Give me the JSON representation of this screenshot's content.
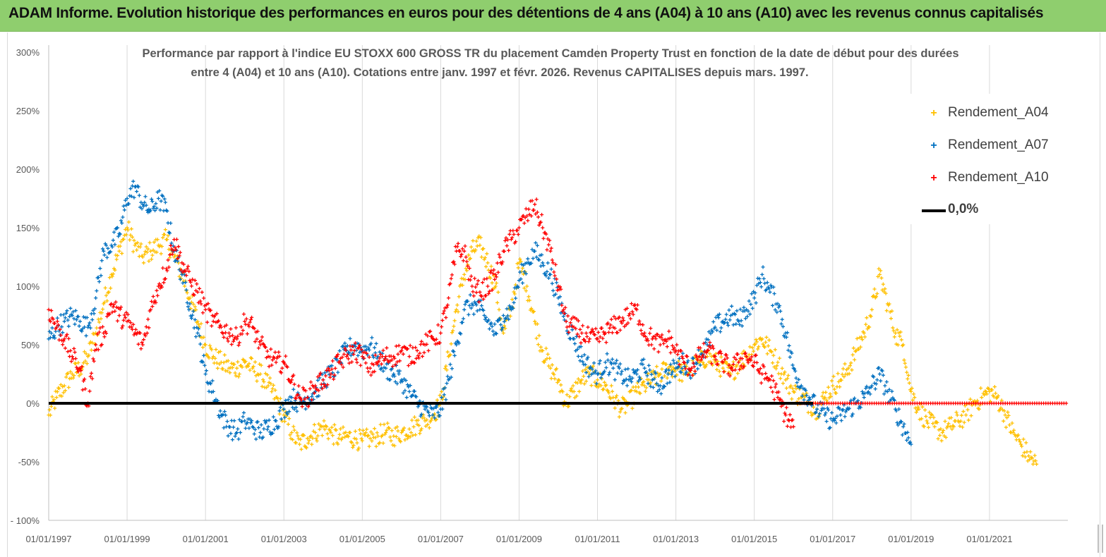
{
  "banner": {
    "title": "ADAM Informe. Evolution historique des performances en euros pour des détentions de 4 ans (A04) à 10 ans (A10) avec les revenus connus capitalisés"
  },
  "colors": {
    "banner_bg": "#8fce6e",
    "A04": "#ffc000",
    "A07": "#0070c0",
    "A10": "#ff0000",
    "zero": "#000000",
    "grid": "#d9d9d9"
  },
  "chart_data": {
    "type": "scatter",
    "title_line1": "Performance par rapport à l'indice EU STOXX 600 GROSS TR  du placement Camden Property Trust en fonction de la date de début pour des durées",
    "title_line2": "entre 4 (A04) et 10 ans (A10).  Cotations entre janv. 1997 et févr. 2026. Revenus CAPITALISES depuis mars. 1997.",
    "xlabel": "",
    "ylabel": "",
    "xlim": [
      1997.0,
      2023.0
    ],
    "ylim": [
      -100,
      300
    ],
    "yticks": [
      -100,
      -50,
      0,
      50,
      100,
      150,
      200,
      250,
      300
    ],
    "ytick_labels": [
      "- 100%",
      "-50%",
      "0%",
      "50%",
      "100%",
      "150%",
      "200%",
      "250%",
      "300%"
    ],
    "xticks": [
      1997,
      1999,
      2001,
      2003,
      2005,
      2007,
      2009,
      2011,
      2013,
      2015,
      2017,
      2019,
      2021
    ],
    "xtick_labels": [
      "01/01/1997",
      "01/01/1999",
      "01/01/2001",
      "01/01/2003",
      "01/01/2005",
      "01/01/2007",
      "01/01/2009",
      "01/01/2011",
      "01/01/2013",
      "01/01/2015",
      "01/01/2017",
      "01/01/2019",
      "01/01/2021"
    ],
    "grid": "vertical",
    "legend_position": "top-right",
    "marker": "+",
    "series": [
      {
        "name": "Rendement_A04",
        "color": "#ffc000",
        "x": [
          1997.0,
          1997.2,
          1997.4,
          1997.6,
          1997.8,
          1998.0,
          1998.2,
          1998.4,
          1998.6,
          1998.8,
          1999.0,
          1999.2,
          1999.4,
          1999.6,
          1999.8,
          2000.0,
          2000.2,
          2000.4,
          2000.6,
          2000.8,
          2001.0,
          2001.2,
          2001.4,
          2001.6,
          2001.8,
          2002.0,
          2002.2,
          2002.4,
          2002.6,
          2002.8,
          2003.0,
          2003.2,
          2003.4,
          2003.6,
          2003.8,
          2004.0,
          2004.2,
          2004.4,
          2004.6,
          2004.8,
          2005.0,
          2005.2,
          2005.4,
          2005.6,
          2005.8,
          2006.0,
          2006.2,
          2006.4,
          2006.6,
          2006.8,
          2007.0,
          2007.2,
          2007.4,
          2007.6,
          2007.8,
          2008.0,
          2008.2,
          2008.4,
          2008.6,
          2008.8,
          2009.0,
          2009.2,
          2009.4,
          2009.6,
          2009.8,
          2010.0,
          2010.2,
          2010.4,
          2010.6,
          2010.8,
          2011.0,
          2011.2,
          2011.4,
          2011.6,
          2011.8,
          2012.0,
          2012.2,
          2012.4,
          2012.6,
          2012.8,
          2013.0,
          2013.2,
          2013.4,
          2013.6,
          2013.8,
          2014.0,
          2014.2,
          2014.4,
          2014.6,
          2014.8,
          2015.0,
          2015.2,
          2015.4,
          2015.6,
          2015.8,
          2016.0,
          2016.2,
          2016.4,
          2016.6,
          2016.8,
          2017.0,
          2017.2,
          2017.4,
          2017.6,
          2017.8,
          2018.0,
          2018.2,
          2018.4,
          2018.6,
          2018.8,
          2019.0,
          2019.2,
          2019.4,
          2019.6,
          2019.8,
          2020.0,
          2020.2,
          2020.4,
          2020.6,
          2020.8,
          2021.0,
          2021.2,
          2021.4,
          2021.6,
          2021.8,
          2022.0,
          2022.2
        ],
        "y": [
          -10,
          5,
          15,
          25,
          30,
          40,
          60,
          85,
          110,
          130,
          150,
          135,
          125,
          130,
          135,
          140,
          125,
          110,
          90,
          70,
          50,
          40,
          35,
          30,
          30,
          35,
          30,
          25,
          15,
          5,
          -10,
          -25,
          -35,
          -30,
          -25,
          -20,
          -25,
          -30,
          -28,
          -30,
          -32,
          -30,
          -28,
          -25,
          -28,
          -25,
          -22,
          -18,
          -15,
          -10,
          0,
          40,
          80,
          110,
          130,
          135,
          120,
          100,
          60,
          80,
          120,
          100,
          70,
          45,
          30,
          20,
          0,
          10,
          20,
          25,
          20,
          15,
          5,
          -5,
          0,
          10,
          15,
          20,
          25,
          30,
          30,
          25,
          30,
          35,
          40,
          35,
          30,
          25,
          35,
          40,
          50,
          55,
          45,
          35,
          20,
          10,
          5,
          0,
          -5,
          5,
          15,
          20,
          30,
          45,
          60,
          80,
          110,
          85,
          60,
          50,
          10,
          -5,
          -15,
          -20,
          -25,
          -20,
          -15,
          -10,
          0,
          5,
          10,
          5,
          -10,
          -25,
          -35,
          -45,
          -52
        ]
      },
      {
        "name": "Rendement_A07",
        "color": "#0070c0",
        "x": [
          1997.0,
          1997.2,
          1997.4,
          1997.6,
          1997.8,
          1998.0,
          1998.2,
          1998.4,
          1998.6,
          1998.8,
          1999.0,
          1999.2,
          1999.4,
          1999.6,
          1999.8,
          2000.0,
          2000.2,
          2000.4,
          2000.6,
          2000.8,
          2001.0,
          2001.2,
          2001.4,
          2001.6,
          2001.8,
          2002.0,
          2002.2,
          2002.4,
          2002.6,
          2002.8,
          2003.0,
          2003.2,
          2003.4,
          2003.6,
          2003.8,
          2004.0,
          2004.2,
          2004.4,
          2004.6,
          2004.8,
          2005.0,
          2005.2,
          2005.4,
          2005.6,
          2005.8,
          2006.0,
          2006.2,
          2006.4,
          2006.6,
          2006.8,
          2007.0,
          2007.2,
          2007.4,
          2007.6,
          2007.8,
          2008.0,
          2008.2,
          2008.4,
          2008.6,
          2008.8,
          2009.0,
          2009.2,
          2009.4,
          2009.6,
          2009.8,
          2010.0,
          2010.2,
          2010.4,
          2010.6,
          2010.8,
          2011.0,
          2011.2,
          2011.4,
          2011.6,
          2011.8,
          2012.0,
          2012.2,
          2012.4,
          2012.6,
          2012.8,
          2013.0,
          2013.2,
          2013.4,
          2013.6,
          2013.8,
          2014.0,
          2014.2,
          2014.4,
          2014.6,
          2014.8,
          2015.0,
          2015.2,
          2015.4,
          2015.6,
          2015.8,
          2016.0,
          2016.2,
          2016.4,
          2016.6,
          2016.8,
          2017.0,
          2017.2,
          2017.4,
          2017.6,
          2017.8,
          2018.0,
          2018.2,
          2018.4,
          2018.6,
          2018.8,
          2019.0
        ],
        "y": [
          55,
          65,
          70,
          75,
          70,
          65,
          90,
          130,
          135,
          145,
          175,
          185,
          170,
          165,
          175,
          165,
          130,
          110,
          85,
          60,
          25,
          10,
          -10,
          -20,
          -25,
          -15,
          -20,
          -25,
          -20,
          -15,
          -5,
          5,
          0,
          5,
          10,
          20,
          25,
          35,
          45,
          50,
          45,
          50,
          40,
          30,
          25,
          20,
          10,
          0,
          -5,
          -10,
          -5,
          20,
          50,
          80,
          85,
          80,
          70,
          60,
          75,
          80,
          105,
          120,
          130,
          120,
          110,
          90,
          70,
          55,
          40,
          30,
          25,
          35,
          30,
          25,
          20,
          25,
          30,
          20,
          15,
          25,
          30,
          35,
          30,
          40,
          50,
          65,
          70,
          75,
          70,
          80,
          90,
          110,
          95,
          85,
          60,
          30,
          15,
          5,
          -5,
          -10,
          -15,
          -10,
          -5,
          0,
          5,
          15,
          25,
          10,
          -5,
          -20,
          -35
        ]
      },
      {
        "name": "Rendement_A10",
        "color": "#ff0000",
        "x": [
          1997.0,
          1997.2,
          1997.4,
          1997.6,
          1997.8,
          1998.0,
          1998.2,
          1998.4,
          1998.6,
          1998.8,
          1999.0,
          1999.2,
          1999.4,
          1999.6,
          1999.8,
          2000.0,
          2000.2,
          2000.4,
          2000.6,
          2000.8,
          2001.0,
          2001.2,
          2001.4,
          2001.6,
          2001.8,
          2002.0,
          2002.2,
          2002.4,
          2002.6,
          2002.8,
          2003.0,
          2003.2,
          2003.4,
          2003.6,
          2003.8,
          2004.0,
          2004.2,
          2004.4,
          2004.6,
          2004.8,
          2005.0,
          2005.2,
          2005.4,
          2005.6,
          2005.8,
          2006.0,
          2006.2,
          2006.4,
          2006.6,
          2006.8,
          2007.0,
          2007.2,
          2007.4,
          2007.6,
          2007.8,
          2008.0,
          2008.2,
          2008.4,
          2008.6,
          2008.8,
          2009.0,
          2009.2,
          2009.4,
          2009.6,
          2009.8,
          2010.0,
          2010.2,
          2010.4,
          2010.6,
          2010.8,
          2011.0,
          2011.2,
          2011.4,
          2011.6,
          2011.8,
          2012.0,
          2012.2,
          2012.4,
          2012.6,
          2012.8,
          2013.0,
          2013.2,
          2013.4,
          2013.6,
          2013.8,
          2014.0,
          2014.2,
          2014.4,
          2014.6,
          2014.8,
          2015.0,
          2015.2,
          2015.4,
          2015.6,
          2015.8,
          2016.0
        ],
        "y": [
          80,
          65,
          55,
          40,
          30,
          0,
          50,
          60,
          85,
          75,
          70,
          60,
          50,
          80,
          100,
          115,
          140,
          120,
          105,
          95,
          80,
          70,
          65,
          60,
          55,
          70,
          65,
          50,
          40,
          35,
          35,
          20,
          5,
          5,
          15,
          20,
          25,
          35,
          40,
          45,
          40,
          30,
          35,
          40,
          40,
          45,
          40,
          45,
          50,
          55,
          60,
          90,
          130,
          130,
          100,
          95,
          100,
          110,
          130,
          140,
          150,
          160,
          170,
          150,
          130,
          100,
          70,
          65,
          60,
          55,
          55,
          60,
          65,
          70,
          75,
          80,
          60,
          55,
          50,
          55,
          45,
          35,
          30,
          40,
          45,
          40,
          35,
          30,
          35,
          40,
          35,
          25,
          20,
          5,
          -10,
          -20
        ]
      },
      {
        "name": "Rendement_A10 (flat)",
        "color": "#ff0000",
        "x_range": [
          2016.1,
          2023.0
        ],
        "y_value": 0
      }
    ],
    "reference_line": {
      "name": "0,0%",
      "y": 0,
      "color": "#000000",
      "x_range": [
        1997.0,
        2016.5
      ]
    }
  },
  "legend": [
    {
      "label": "Rendement_A04",
      "marker": "+",
      "color": "#ffc000"
    },
    {
      "label": "Rendement_A07",
      "marker": "+",
      "color": "#0070c0"
    },
    {
      "label": "Rendement_A10",
      "marker": "+",
      "color": "#ff0000"
    },
    {
      "label": "0,0%",
      "marker": "line",
      "color": "#000000"
    }
  ]
}
